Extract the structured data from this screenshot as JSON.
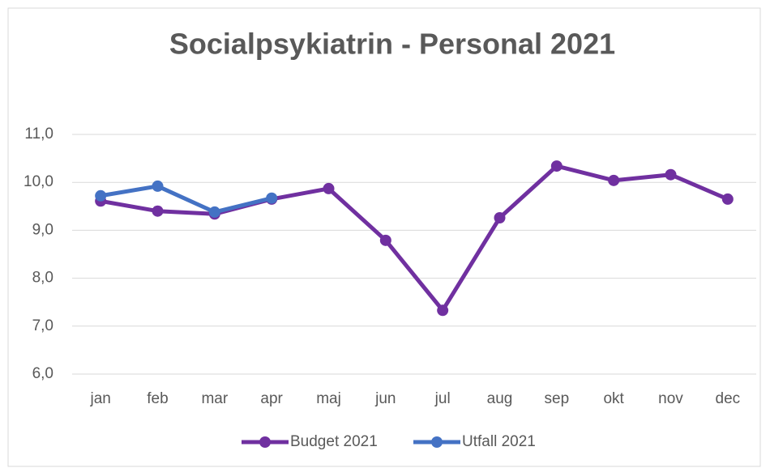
{
  "chart_data": {
    "type": "line",
    "title": "Socialpsykiatrin - Personal 2021",
    "categories": [
      "jan",
      "feb",
      "mar",
      "apr",
      "maj",
      "jun",
      "jul",
      "aug",
      "sep",
      "okt",
      "nov",
      "dec"
    ],
    "series": [
      {
        "name": "Budget 2021",
        "color": "#7030a0",
        "values": [
          9.61,
          9.4,
          9.34,
          9.65,
          9.87,
          8.79,
          7.33,
          9.26,
          10.34,
          10.04,
          10.16,
          9.65
        ]
      },
      {
        "name": "Utfall 2021",
        "color": "#4472c4",
        "values": [
          9.72,
          9.92,
          9.38,
          9.67,
          null,
          null,
          null,
          null,
          null,
          null,
          null,
          null
        ]
      }
    ],
    "ylim": [
      6,
      11
    ],
    "yticks": [
      {
        "value": 6,
        "label": "6,0"
      },
      {
        "value": 7,
        "label": "7,0"
      },
      {
        "value": 8,
        "label": "8,0"
      },
      {
        "value": 9,
        "label": "9,0"
      },
      {
        "value": 10,
        "label": "10,0"
      },
      {
        "value": 11,
        "label": "11,0"
      }
    ],
    "grid": true,
    "legend": "bottom"
  }
}
